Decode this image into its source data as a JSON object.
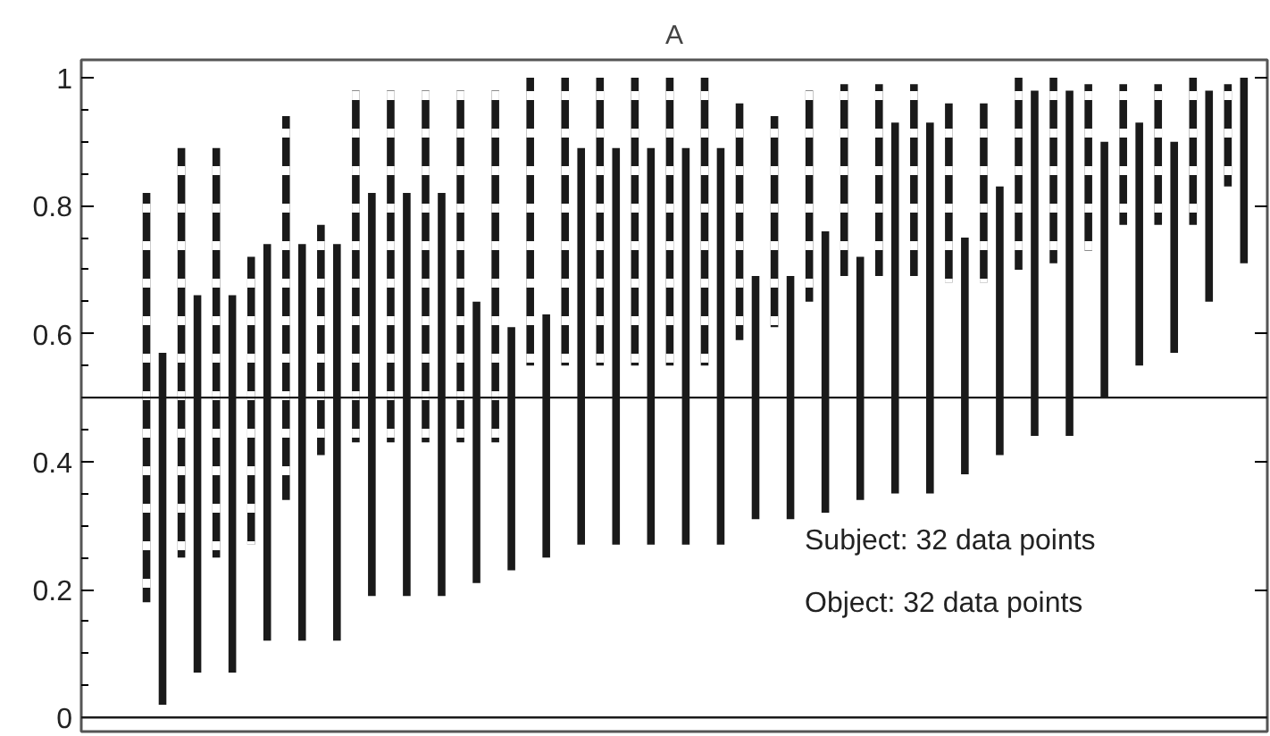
{
  "chart_data": {
    "type": "bar",
    "title": "A",
    "categories": [
      null,
      null,
      null,
      null,
      null,
      null,
      null,
      null,
      null,
      null,
      null,
      null,
      null,
      null,
      null,
      null,
      null,
      null,
      null,
      null,
      null,
      null,
      null,
      null,
      null,
      null,
      null,
      null,
      null,
      null,
      null,
      null
    ],
    "series": [
      {
        "color": "#1a1a1a",
        "line_style": "dashed",
        "base": [
          0.18,
          0.25,
          0.25,
          0.27,
          0.34,
          0.41,
          0.43,
          0.43,
          0.43,
          0.43,
          0.43,
          0.55,
          0.55,
          0.55,
          0.55,
          0.55,
          0.55,
          0.59,
          0.61,
          0.65,
          0.69,
          0.69,
          0.69,
          0.68,
          0.68,
          0.7,
          0.71,
          0.73,
          0.77,
          0.77,
          0.77,
          0.83
        ],
        "values": [
          0.64,
          0.64,
          0.64,
          0.45,
          0.6,
          0.36,
          0.55,
          0.55,
          0.55,
          0.55,
          0.55,
          0.45,
          0.45,
          0.45,
          0.45,
          0.45,
          0.45,
          0.37,
          0.33,
          0.33,
          0.3,
          0.3,
          0.3,
          0.28,
          0.28,
          0.3,
          0.29,
          0.26,
          0.22,
          0.22,
          0.23,
          0.16
        ]
      },
      {
        "color": "#1a1a1a",
        "line_style": "solid",
        "base": [
          0.02,
          0.07,
          0.07,
          0.12,
          0.12,
          0.12,
          0.19,
          0.19,
          0.19,
          0.21,
          0.23,
          0.25,
          0.27,
          0.27,
          0.27,
          0.27,
          0.27,
          0.31,
          0.31,
          0.32,
          0.34,
          0.35,
          0.35,
          0.38,
          0.41,
          0.44,
          0.44,
          0.5,
          0.55,
          0.57,
          0.65,
          0.71
        ],
        "values": [
          0.55,
          0.59,
          0.59,
          0.62,
          0.62,
          0.62,
          0.63,
          0.63,
          0.63,
          0.44,
          0.38,
          0.38,
          0.62,
          0.62,
          0.62,
          0.62,
          0.62,
          0.38,
          0.38,
          0.44,
          0.38,
          0.58,
          0.58,
          0.37,
          0.42,
          0.54,
          0.54,
          0.4,
          0.38,
          0.33,
          0.33,
          0.29
        ]
      }
    ],
    "ylim": [
      -0.022,
      1.028
    ],
    "yticks": [
      0,
      0.2,
      0.4,
      0.6,
      0.8,
      1
    ],
    "tick_labels": "y",
    "grid": false,
    "ref_lines": [
      {
        "axis": "y",
        "value": 0,
        "color": "#1a1a1a"
      },
      {
        "axis": "y",
        "value": 0.5,
        "color": "#1a1a1a"
      }
    ],
    "annotations": [
      "Subject: 32 data points",
      "Object: 32 data points"
    ]
  }
}
